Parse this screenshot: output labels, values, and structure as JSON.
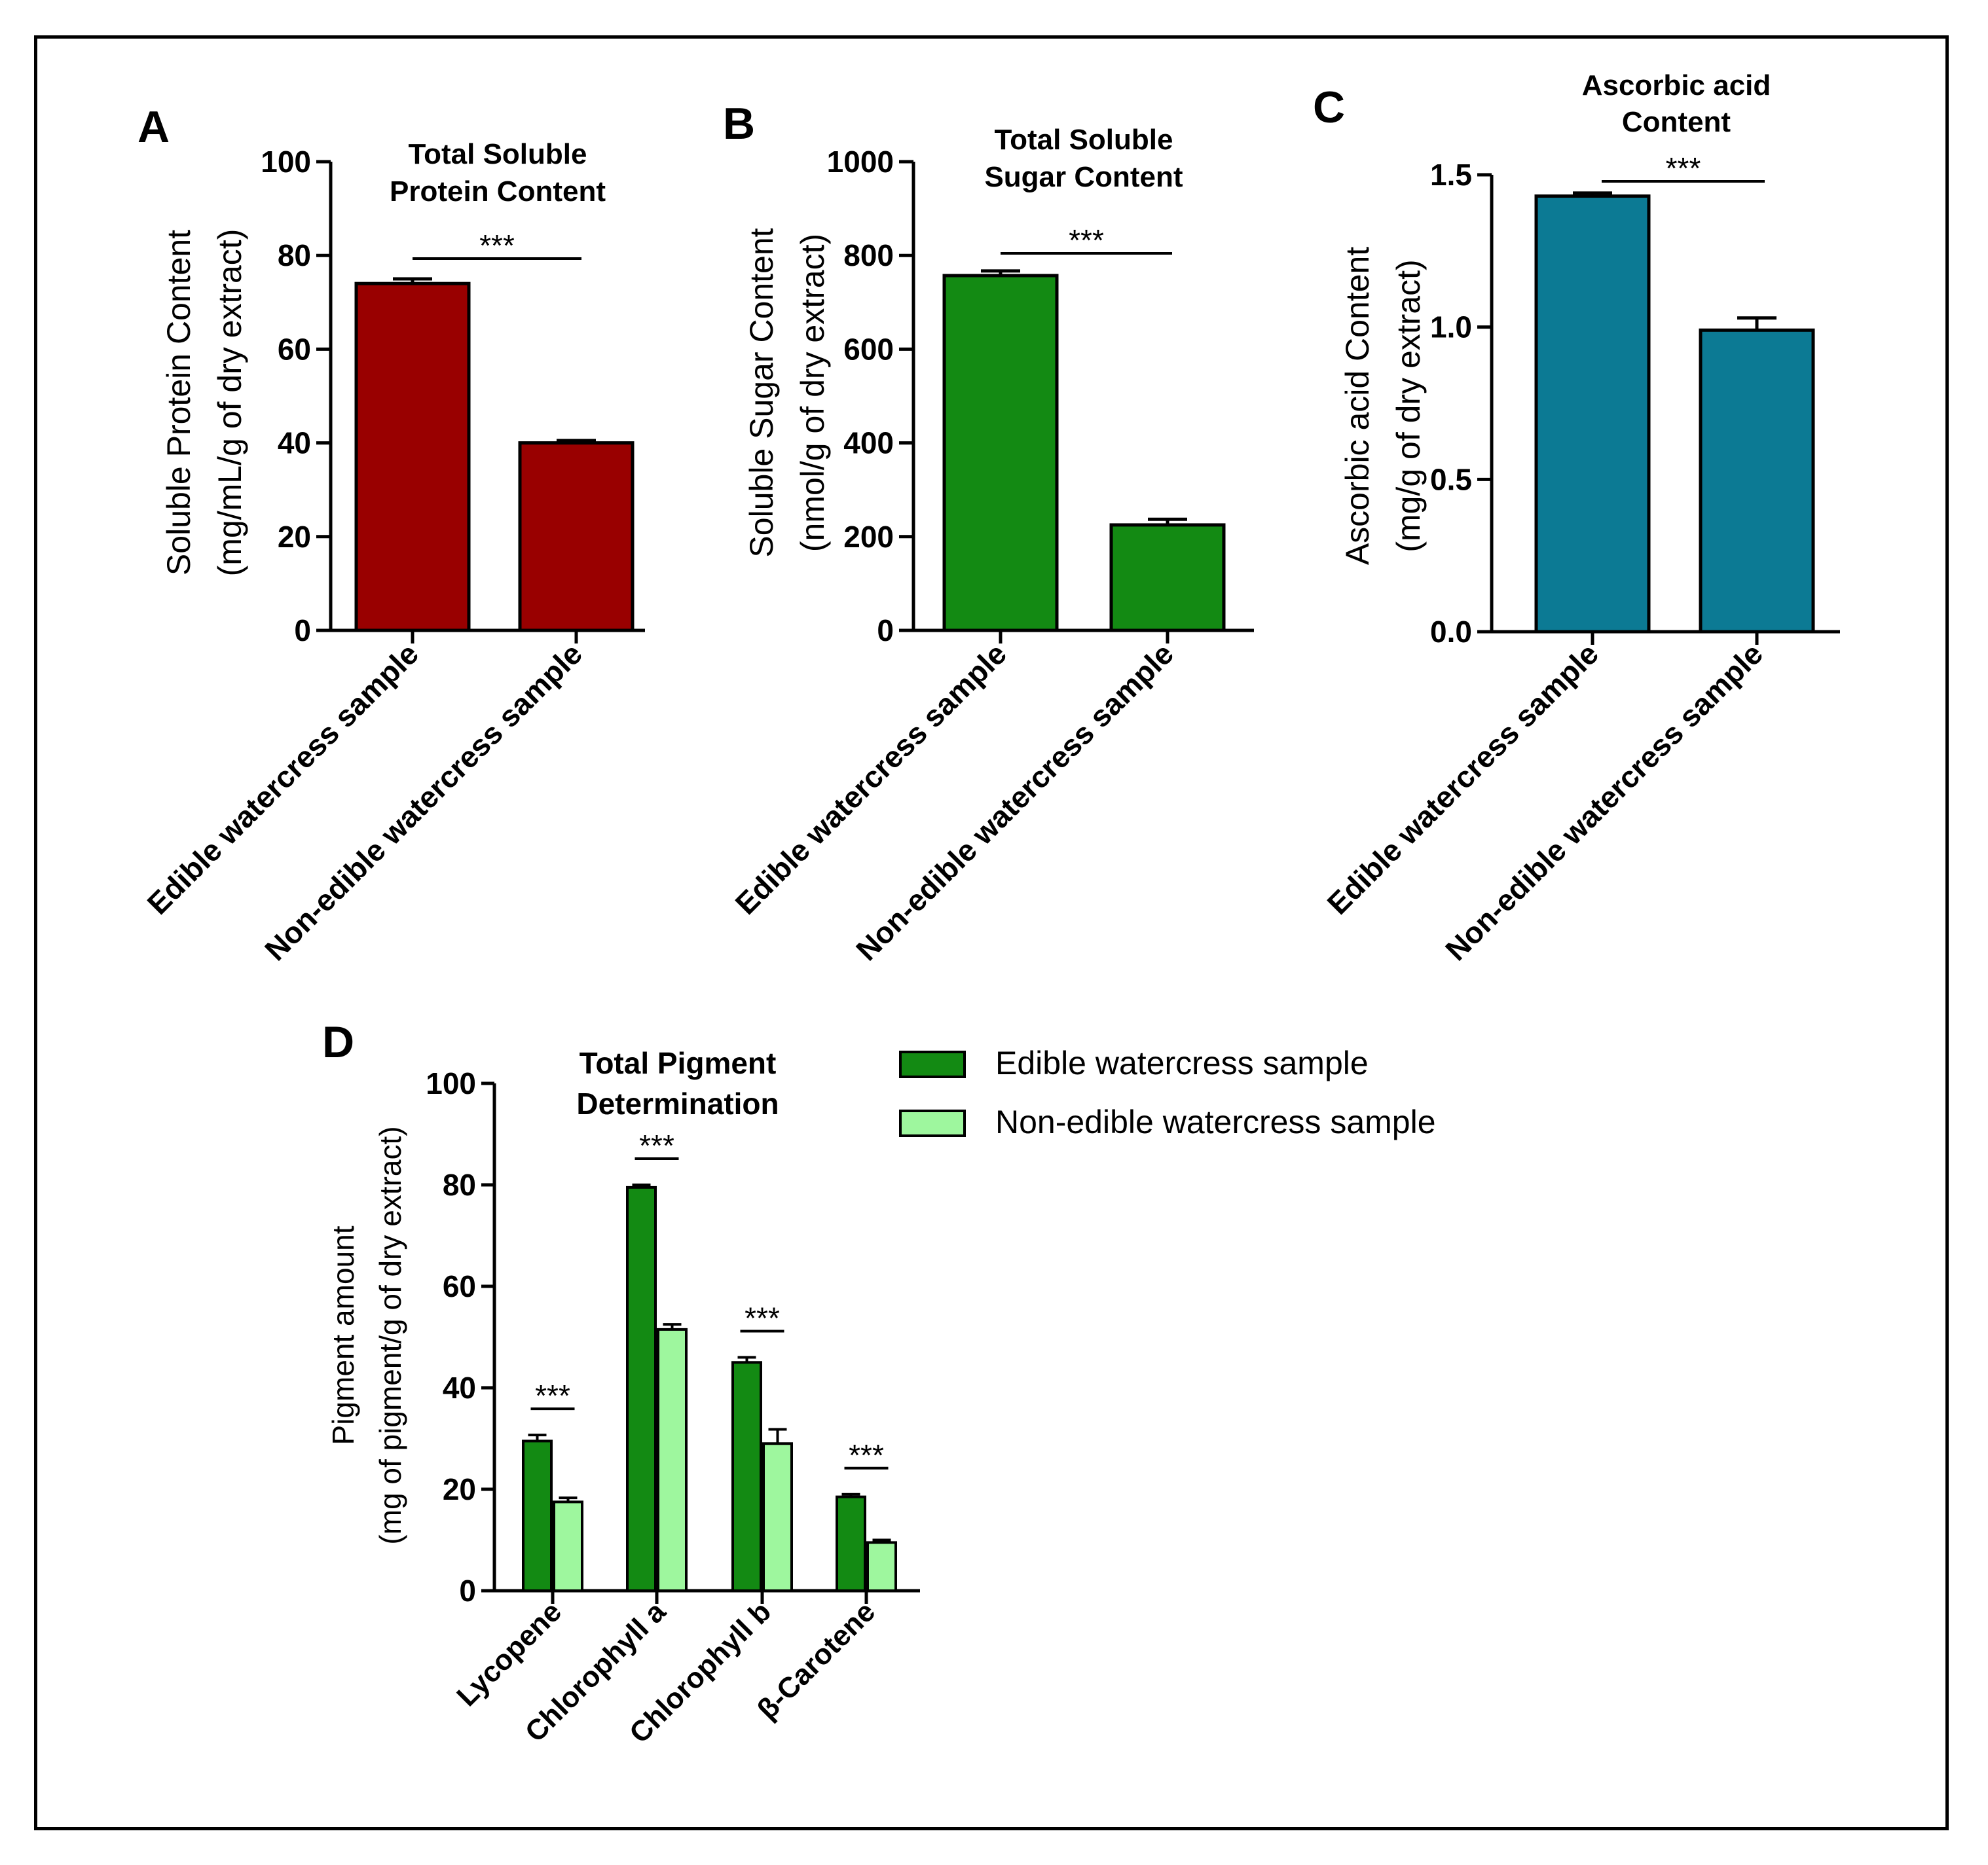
{
  "figure": {
    "panel_colors": {
      "A": "#990000",
      "B": "#138a13",
      "C": "#0c7a94",
      "D_edible": "#138a13",
      "D_nonedible": "#9ef79e"
    }
  },
  "chart_data": [
    {
      "panel": "A",
      "type": "bar",
      "title": "Total Soluble Protein Content",
      "title_lines": [
        "Total Soluble",
        "Protein Content"
      ],
      "ylabel": "Soluble Protein Content",
      "ylabel2": "(mg/mL/g of dry extract)",
      "categories": [
        "Edible watercress sample",
        "Non-edible watercress sample"
      ],
      "values": [
        74,
        40
      ],
      "errors": [
        1,
        0.5
      ],
      "ylim": [
        0,
        100
      ],
      "yticks": [
        0,
        20,
        40,
        60,
        80,
        100
      ],
      "ytick_labels": [
        "0",
        "20",
        "40",
        "60",
        "80",
        "100"
      ],
      "significance": "***",
      "color": "#990000"
    },
    {
      "panel": "B",
      "type": "bar",
      "title": "Total Soluble Sugar Content",
      "title_lines": [
        "Total Soluble",
        "Sugar Content"
      ],
      "ylabel": "Soluble Sugar Content",
      "ylabel2": "(nmol/g of dry extract)",
      "categories": [
        "Edible watercress sample",
        "Non-edible watercress sample"
      ],
      "values": [
        757,
        225
      ],
      "errors": [
        10,
        12
      ],
      "ylim": [
        0,
        1000
      ],
      "yticks": [
        0,
        200,
        400,
        600,
        800,
        1000
      ],
      "ytick_labels": [
        "0",
        "200",
        "400",
        "600",
        "800",
        "1000"
      ],
      "significance": "***",
      "color": "#138a13"
    },
    {
      "panel": "C",
      "type": "bar",
      "title": "Ascorbic acid Content",
      "title_lines": [
        "Ascorbic acid",
        "Content"
      ],
      "ylabel": "Ascorbic acid Content",
      "ylabel2": "(mg/g of dry extract)",
      "categories": [
        "Edible watercress sample",
        "Non-edible watercress sample"
      ],
      "values": [
        1.43,
        0.99
      ],
      "errors": [
        0.01,
        0.04
      ],
      "ylim": [
        0,
        1.5
      ],
      "yticks": [
        0,
        0.5,
        1.0,
        1.5
      ],
      "ytick_labels": [
        "0.0",
        "0.5",
        "1.0",
        "1.5"
      ],
      "significance": "***",
      "color": "#0c7a94"
    },
    {
      "panel": "D",
      "type": "bar",
      "title": "Total Pigment Determination",
      "title_lines": [
        "Total Pigment",
        "Determination"
      ],
      "ylabel": "Pigment amount",
      "ylabel2": "(mg of pigment/g of dry extract)",
      "categories": [
        "Lycopene",
        "Chlorophyll a",
        "Chlorophyll b",
        "β-Carotene"
      ],
      "series": [
        {
          "name": "Edible watercress sample",
          "values": [
            29.5,
            79.5,
            45,
            18.5
          ],
          "errors": [
            1.2,
            0.5,
            1,
            0.5
          ],
          "color": "#138a13"
        },
        {
          "name": "Non-edible watercress sample",
          "values": [
            17.5,
            51.5,
            29,
            9.5
          ],
          "errors": [
            0.8,
            1,
            2.8,
            0.5
          ],
          "color": "#9ef79e"
        }
      ],
      "ylim": [
        0,
        100
      ],
      "yticks": [
        0,
        20,
        40,
        60,
        80,
        100
      ],
      "ytick_labels": [
        "0",
        "20",
        "40",
        "60",
        "80",
        "100"
      ],
      "significance": [
        "***",
        "***",
        "***",
        "***"
      ],
      "legend": "top-right"
    }
  ]
}
